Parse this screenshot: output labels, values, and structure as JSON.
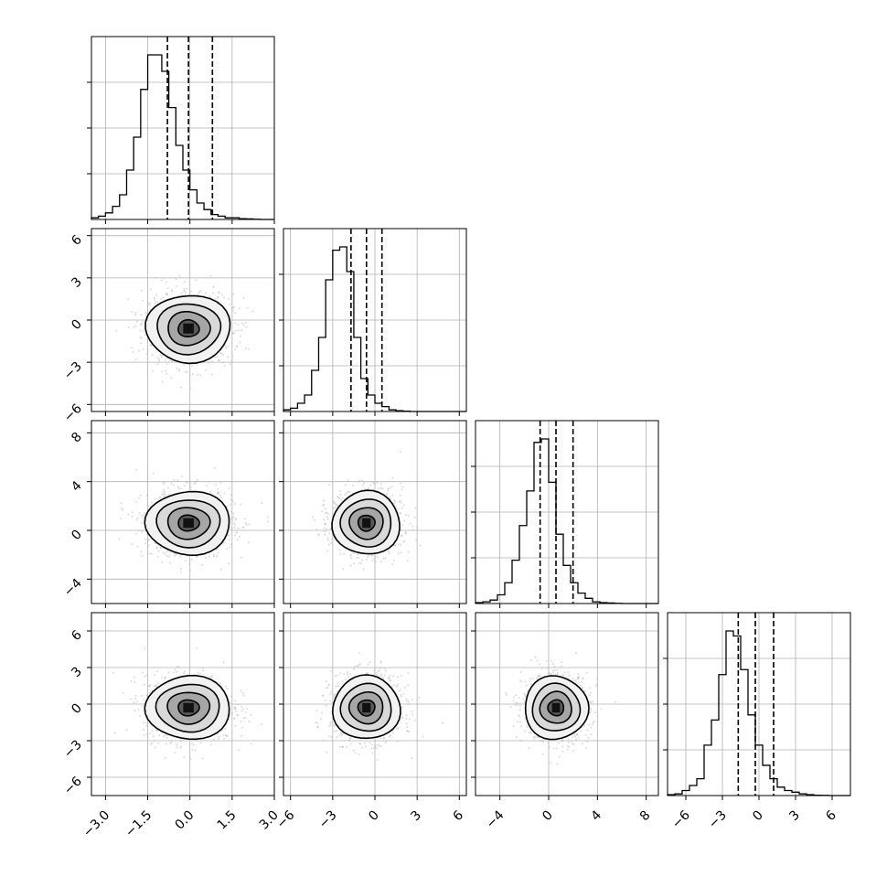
{
  "chart_data": {
    "type": "corner",
    "n_params": 4,
    "grid": true,
    "parameters": [
      {
        "index": 0,
        "range": [
          -3.5,
          3.0
        ],
        "ticks": [
          -3.0,
          -1.5,
          0.0,
          1.5,
          3.0
        ],
        "tick_labels": [
          "−3.0",
          "−1.5",
          "0.0",
          "1.5",
          "3.0"
        ],
        "mean": -0.05,
        "std": 0.75,
        "quantiles": [
          -0.8,
          -0.05,
          0.8
        ],
        "histogram": {
          "bin_start": -3.5,
          "bin_width": 0.25,
          "counts": [
            0.01,
            0.02,
            0.04,
            0.08,
            0.15,
            0.3,
            0.5,
            0.79,
            1.0,
            1.0,
            0.9,
            0.68,
            0.45,
            0.3,
            0.18,
            0.1,
            0.06,
            0.03,
            0.02,
            0.01,
            0.01,
            0.005,
            0.003,
            0.001,
            0.0,
            0.0
          ]
        }
      },
      {
        "index": 1,
        "range": [
          -6.5,
          6.5
        ],
        "ticks": [
          -6,
          -3,
          0,
          3,
          6
        ],
        "tick_labels": [
          "−6",
          "−3",
          "0",
          "3",
          "6"
        ],
        "mean": -0.6,
        "std": 1.2,
        "quantiles": [
          -1.7,
          -0.6,
          0.5
        ],
        "histogram": {
          "bin_start": -6.5,
          "bin_width": 0.5,
          "counts": [
            0.01,
            0.02,
            0.05,
            0.1,
            0.25,
            0.45,
            0.8,
            0.98,
            1.0,
            0.85,
            0.45,
            0.2,
            0.1,
            0.05,
            0.03,
            0.01,
            0.005,
            0.002,
            0.0,
            0.0,
            0.0,
            0.0,
            0.0,
            0.0,
            0.0,
            0.0
          ]
        }
      },
      {
        "index": 2,
        "range": [
          -6.0,
          9.0
        ],
        "ticks": [
          -4,
          0,
          4,
          8
        ],
        "tick_labels": [
          "−4",
          "0",
          "4",
          "8"
        ],
        "mean": 0.6,
        "std": 1.3,
        "quantiles": [
          -0.7,
          0.6,
          2.0
        ],
        "histogram": {
          "bin_start": -6.0,
          "bin_width": 0.6,
          "counts": [
            0.005,
            0.01,
            0.02,
            0.05,
            0.12,
            0.25,
            0.45,
            0.65,
            0.93,
            0.95,
            0.7,
            0.4,
            0.22,
            0.12,
            0.06,
            0.03,
            0.01,
            0.005,
            0.003,
            0.001,
            0.0,
            0.0,
            0.0,
            0.0,
            0.0
          ]
        }
      },
      {
        "index": 3,
        "range": [
          -7.5,
          7.5
        ],
        "ticks": [
          -6,
          -3,
          0,
          3,
          6
        ],
        "tick_labels": [
          "−6",
          "−3",
          "0",
          "3",
          "6"
        ],
        "mean": -0.3,
        "std": 1.3,
        "quantiles": [
          -1.7,
          -0.3,
          1.2
        ],
        "histogram": {
          "bin_start": -7.5,
          "bin_width": 0.6,
          "counts": [
            0.005,
            0.01,
            0.03,
            0.06,
            0.1,
            0.3,
            0.45,
            0.72,
            0.98,
            0.95,
            0.75,
            0.48,
            0.3,
            0.18,
            0.1,
            0.05,
            0.03,
            0.02,
            0.01,
            0.005,
            0.002,
            0.001,
            0.0,
            0.0,
            0.0
          ]
        }
      }
    ],
    "contour_levels_sigma": [
      0.5,
      1.0,
      1.5,
      2.0
    ],
    "scatter_color": "#bdbdbd",
    "line_color": "#000000",
    "grid_color": "#b0b0b0"
  }
}
